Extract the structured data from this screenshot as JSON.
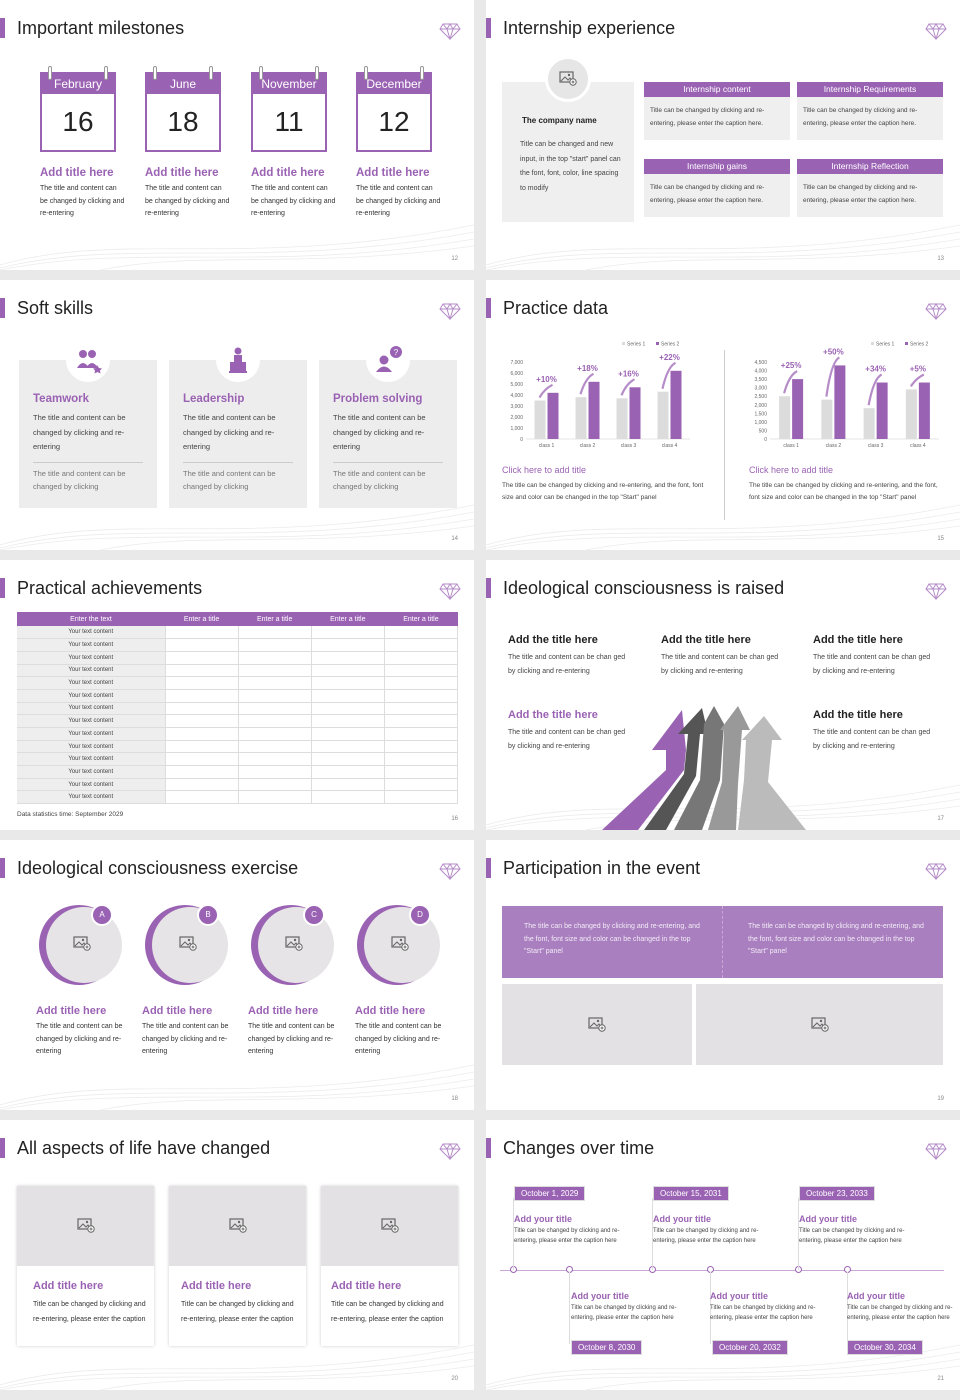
{
  "slides": [
    {
      "title": "Important milestones",
      "num": "12",
      "milestones": [
        {
          "month": "February",
          "day": "16",
          "title": "Add title here",
          "desc": "The title and content can be changed by clicking and re-entering"
        },
        {
          "month": "June",
          "day": "18",
          "title": "Add title here",
          "desc": "The title and content can be changed by clicking and re-entering"
        },
        {
          "month": "November",
          "day": "11",
          "title": "Add title here",
          "desc": "The title and content can be changed by clicking and re-entering"
        },
        {
          "month": "December",
          "day": "12",
          "title": "Add title here",
          "desc": "The title and content can be changed by clicking and re-entering"
        }
      ]
    },
    {
      "title": "Internship experience",
      "num": "13",
      "company": {
        "name": "The company name",
        "desc": "Title can be changed and new input, in the top \"start\" panel can the font, font, color, line spacing to modify"
      },
      "boxes": [
        {
          "head": "Internship content",
          "text": "Title can be changed by clicking and re-entering, please enter the caption here."
        },
        {
          "head": "Internship Requirements",
          "text": "Title can be changed by clicking and re-entering, please enter the caption here."
        },
        {
          "head": "Internship gains",
          "text": "Title can be changed by clicking and re-entering, please enter the caption here."
        },
        {
          "head": "Internship Reflection",
          "text": "Title can be changed by clicking and re-entering, please enter the caption here."
        }
      ]
    },
    {
      "title": "Soft skills",
      "num": "14",
      "skills": [
        {
          "title": "Teamwork",
          "desc": "The title and content can be changed by clicking and re-entering",
          "desc2": "The title and content can be changed by clicking",
          "icon": "team-icon"
        },
        {
          "title": "Leadership",
          "desc": "The title and content can be changed by clicking and re-entering",
          "desc2": "The title and content can be changed by clicking",
          "icon": "podium-icon"
        },
        {
          "title": "Problem solving",
          "desc": "The title and content can be changed by clicking and re-entering",
          "desc2": "The title and content can be changed by clicking",
          "icon": "question-person-icon"
        }
      ]
    },
    {
      "title": "Practice data",
      "num": "15",
      "captions": [
        {
          "title": "Click here to add title",
          "desc": "The title can be changed by clicking and re-entering, and the font, font size and color can be changed in the top \"Start\" panel"
        },
        {
          "title": "Click here to add title",
          "desc": "The title can be changed by clicking and re-entering, and the font, font size and color can be changed in the top \"Start\" panel"
        }
      ]
    },
    {
      "title": "Practical achievements",
      "num": "16",
      "table": {
        "headers": [
          "Enter the text",
          "Enter a title",
          "Enter a title",
          "Enter a title",
          "Enter a title"
        ],
        "rows": [
          "Your text content",
          "Your text content",
          "Your text content",
          "Your text content",
          "Your text content",
          "Your text content",
          "Your text content",
          "Your text content",
          "Your text content",
          "Your text content",
          "Your text content",
          "Your text content",
          "Your text content",
          "Your text content"
        ]
      },
      "note": "Data statistics time: September 2029"
    },
    {
      "title": "Ideological consciousness is raised",
      "num": "17",
      "items": [
        {
          "title": "Add the title here",
          "desc": "The title and content can be chan ged by clicking and re-entering"
        },
        {
          "title": "Add the title here",
          "desc": "The title and content can be chan ged by clicking and re-entering"
        },
        {
          "title": "Add the title here",
          "desc": "The title and content can be chan ged by clicking and re-entering"
        },
        {
          "title": "Add the title here",
          "desc": "The title and content can be chan ged by clicking and re-entering"
        },
        {
          "title": "Add the title here",
          "desc": "The title and content can be chan ged by clicking and re-entering"
        }
      ]
    },
    {
      "title": "Ideological consciousness exercise",
      "num": "18",
      "items": [
        {
          "badge": "A",
          "title": "Add title here",
          "desc": "The title and content can be changed by clicking and re-entering"
        },
        {
          "badge": "B",
          "title": "Add title here",
          "desc": "The title and content can be changed by clicking and re-entering"
        },
        {
          "badge": "C",
          "title": "Add title here",
          "desc": "The title and content can be changed by clicking and re-entering"
        },
        {
          "badge": "D",
          "title": "Add title here",
          "desc": "The title and content can be changed by clicking and re-entering"
        }
      ]
    },
    {
      "title": "Participation in the event",
      "num": "19",
      "texts": [
        "The title can be changed by clicking and re-entering, and the font, font size and color can be changed in the top \"Start\" panel",
        "The title can be changed by clicking and re-entering, and the font, font size and color can be changed in the top \"Start\" panel"
      ]
    },
    {
      "title": "All aspects of life have changed",
      "num": "20",
      "cards": [
        {
          "title": "Add title here",
          "desc": "Title can be changed by clicking and re-entering, please enter the caption"
        },
        {
          "title": "Add title here",
          "desc": "Title can be changed by clicking and re-entering, please enter the caption"
        },
        {
          "title": "Add title here",
          "desc": "Title can be changed by clicking and re-entering, please enter the caption"
        }
      ]
    },
    {
      "title": "Changes over time",
      "num": "21",
      "top": [
        {
          "date": "October 1, 2029",
          "title": "Add your title",
          "desc": "Title can be changed by clicking and re-entering, please enter the caption here"
        },
        {
          "date": "October 15, 2031",
          "title": "Add your title",
          "desc": "Title can be changed by clicking and re-entering, please enter the caption here"
        },
        {
          "date": "October 23, 2033",
          "title": "Add your title",
          "desc": "Title can be changed by clicking and re-entering, please enter the caption here"
        }
      ],
      "bottom": [
        {
          "date": "October 8, 2030",
          "title": "Add your title",
          "desc": "Title can be changed by clicking and re-entering, please enter the caption here"
        },
        {
          "date": "October 20, 2032",
          "title": "Add your title",
          "desc": "Title can be changed by clicking and re-entering, please enter the caption here"
        },
        {
          "date": "October 30, 2034",
          "title": "Add your title",
          "desc": "Title can be changed by clicking and re-entering, please enter the caption here"
        }
      ]
    }
  ],
  "chart_data": [
    {
      "type": "bar",
      "categories": [
        "class 1",
        "class 2",
        "class 3",
        "class 4"
      ],
      "series": [
        {
          "name": "Series 1",
          "values": [
            3500,
            3800,
            3700,
            4300
          ]
        },
        {
          "name": "Series 2",
          "values": [
            4200,
            5200,
            4700,
            6200
          ]
        }
      ],
      "ylim": [
        0,
        7000
      ],
      "yticks": [
        "7,000",
        "6,000",
        "5,000",
        "4,000",
        "3,000",
        "2,000",
        "1,000",
        "0"
      ],
      "annotations": [
        "+10%",
        "+18%",
        "+16%",
        "+22%"
      ],
      "legend": "top-right",
      "colors": [
        "#dcdcdc",
        "#9a62b3"
      ]
    },
    {
      "type": "bar",
      "categories": [
        "class 1",
        "class 2",
        "class 3",
        "class 4"
      ],
      "series": [
        {
          "name": "Series 1",
          "values": [
            2500,
            2300,
            1800,
            2900
          ]
        },
        {
          "name": "Series 2",
          "values": [
            3500,
            4300,
            3300,
            3300
          ]
        }
      ],
      "ylim": [
        0,
        4500
      ],
      "yticks": [
        "4,500",
        "4,000",
        "3,500",
        "3,000",
        "2,500",
        "2,000",
        "1,500",
        "1,000",
        "500",
        "0"
      ],
      "annotations": [
        "+25%",
        "+50%",
        "+34%",
        "+5%"
      ],
      "legend": "top-right",
      "colors": [
        "#dcdcdc",
        "#9a62b3"
      ]
    }
  ]
}
